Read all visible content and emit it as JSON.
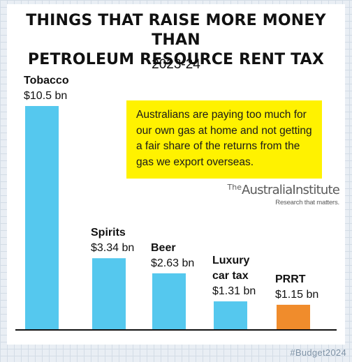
{
  "title_line1": "THINGS THAT RAISE MORE MONEY THAN",
  "title_line2": "PETROLEUM RESOURCE RENT TAX",
  "subtitle": "2023-24",
  "callout": "Australians are paying too much for our own gas at home and not getting a fair share of the returns from the gas we export overseas.",
  "logo": {
    "prefix": "The",
    "name": "AustraliaInstitute",
    "tagline": "Research that matters."
  },
  "hashtag": "#Budget2024",
  "colors": {
    "bar": "#55c8ee",
    "highlight": "#f08c2c",
    "callout_bg": "#fff200",
    "axis": "#111111"
  },
  "chart_data": {
    "type": "bar",
    "title": "THINGS THAT RAISE MORE MONEY THAN PETROLEUM RESOURCE RENT TAX",
    "subtitle": "2023-24",
    "categories": [
      [
        "Tobacco"
      ],
      [
        "Spirits"
      ],
      [
        "Beer"
      ],
      [
        "Luxury",
        "car tax"
      ],
      [
        "PRRT"
      ]
    ],
    "values": [
      10.5,
      3.34,
      2.63,
      1.31,
      1.15
    ],
    "value_labels": [
      "$10.5 bn",
      "$3.34 bn",
      "$2.63 bn",
      "$1.31 bn",
      "$1.15 bn"
    ],
    "highlight_index": 4,
    "ylim": [
      0,
      10.5
    ],
    "xlabel": "",
    "ylabel": "",
    "grid": false,
    "legend": "none"
  }
}
